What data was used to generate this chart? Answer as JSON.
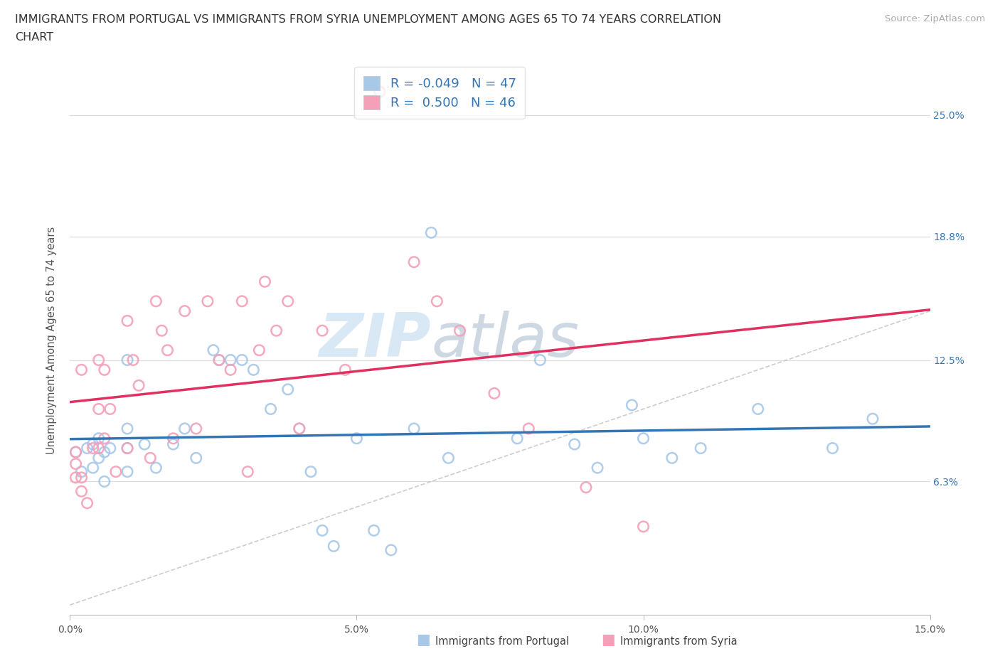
{
  "title_line1": "IMMIGRANTS FROM PORTUGAL VS IMMIGRANTS FROM SYRIA UNEMPLOYMENT AMONG AGES 65 TO 74 YEARS CORRELATION",
  "title_line2": "CHART",
  "source_text": "Source: ZipAtlas.com",
  "ylabel": "Unemployment Among Ages 65 to 74 years",
  "xlim": [
    0.0,
    0.15
  ],
  "ylim": [
    -0.005,
    0.275
  ],
  "ytick_vals": [
    0.063,
    0.125,
    0.188,
    0.25
  ],
  "ytick_labels": [
    "6.3%",
    "12.5%",
    "18.8%",
    "25.0%"
  ],
  "xtick_vals": [
    0.0,
    0.05,
    0.1,
    0.15
  ],
  "xtick_labels": [
    "0.0%",
    "5.0%",
    "10.0%",
    "15.0%"
  ],
  "grid_color": "#dddddd",
  "watermark_zip": "ZIP",
  "watermark_atlas": "atlas",
  "legend_r1": "R = -0.049",
  "legend_n1": "N = 47",
  "legend_r2": "R =  0.500",
  "legend_n2": "N = 46",
  "blue_scatter_color": "#a8c8e8",
  "pink_scatter_color": "#f4a0b8",
  "blue_line_color": "#3375b5",
  "pink_line_color": "#e03060",
  "diag_color": "#c8c8c8",
  "legend_label1": "Immigrants from Portugal",
  "legend_label2": "Immigrants from Syria",
  "right_tick_color": "#3375b5",
  "portugal_x": [
    0.001,
    0.002,
    0.003,
    0.004,
    0.004,
    0.005,
    0.005,
    0.006,
    0.006,
    0.007,
    0.01,
    0.01,
    0.01,
    0.01,
    0.013,
    0.015,
    0.018,
    0.02,
    0.022,
    0.025,
    0.026,
    0.028,
    0.03,
    0.032,
    0.035,
    0.038,
    0.04,
    0.042,
    0.044,
    0.046,
    0.05,
    0.053,
    0.056,
    0.06,
    0.063,
    0.066,
    0.078,
    0.082,
    0.088,
    0.092,
    0.098,
    0.1,
    0.105,
    0.11,
    0.12,
    0.133,
    0.14
  ],
  "portugal_y": [
    0.078,
    0.068,
    0.08,
    0.082,
    0.07,
    0.085,
    0.075,
    0.078,
    0.063,
    0.08,
    0.125,
    0.09,
    0.08,
    0.068,
    0.082,
    0.07,
    0.082,
    0.09,
    0.075,
    0.13,
    0.125,
    0.125,
    0.125,
    0.12,
    0.1,
    0.11,
    0.09,
    0.068,
    0.038,
    0.03,
    0.085,
    0.038,
    0.028,
    0.09,
    0.19,
    0.075,
    0.085,
    0.125,
    0.082,
    0.07,
    0.102,
    0.085,
    0.075,
    0.08,
    0.1,
    0.08,
    0.095
  ],
  "syria_x": [
    0.001,
    0.001,
    0.001,
    0.002,
    0.002,
    0.002,
    0.003,
    0.004,
    0.005,
    0.005,
    0.005,
    0.006,
    0.006,
    0.007,
    0.008,
    0.01,
    0.01,
    0.011,
    0.012,
    0.014,
    0.015,
    0.016,
    0.017,
    0.018,
    0.02,
    0.022,
    0.024,
    0.026,
    0.028,
    0.03,
    0.031,
    0.033,
    0.034,
    0.036,
    0.038,
    0.04,
    0.044,
    0.048,
    0.054,
    0.06,
    0.064,
    0.068,
    0.074,
    0.08,
    0.09,
    0.1
  ],
  "syria_y": [
    0.078,
    0.072,
    0.065,
    0.12,
    0.065,
    0.058,
    0.052,
    0.08,
    0.125,
    0.1,
    0.08,
    0.12,
    0.085,
    0.1,
    0.068,
    0.145,
    0.08,
    0.125,
    0.112,
    0.075,
    0.155,
    0.14,
    0.13,
    0.085,
    0.15,
    0.09,
    0.155,
    0.125,
    0.12,
    0.155,
    0.068,
    0.13,
    0.165,
    0.14,
    0.155,
    0.09,
    0.14,
    0.12,
    0.262,
    0.175,
    0.155,
    0.14,
    0.108,
    0.09,
    0.06,
    0.04
  ],
  "title_fontsize": 11.5,
  "axis_label_fontsize": 10.5,
  "tick_fontsize": 10,
  "legend_fontsize": 13,
  "source_fontsize": 9.5
}
